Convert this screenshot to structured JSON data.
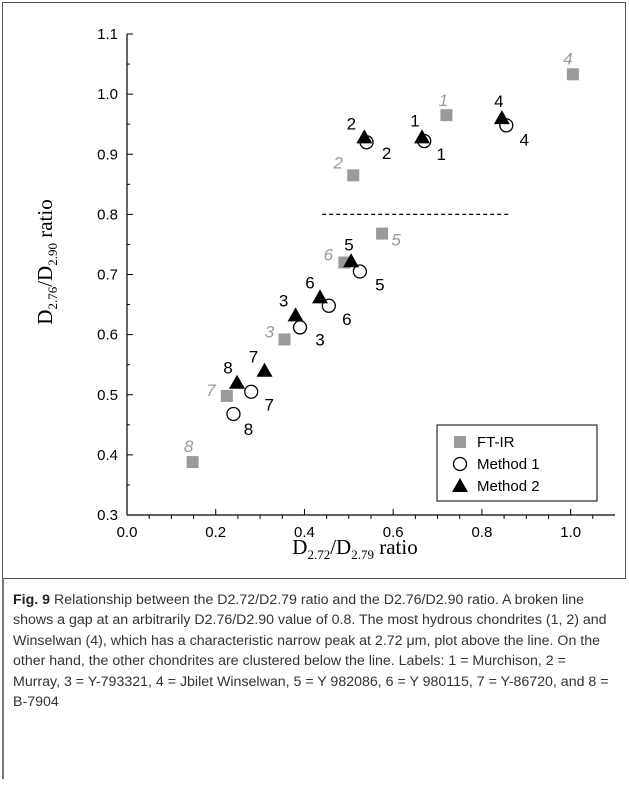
{
  "chart_data": {
    "type": "scatter",
    "xlabel": "D2.72/D2.79 ratio",
    "ylabel": "D2.76/D2.90 ratio",
    "xlim": [
      0.0,
      1.1
    ],
    "ylim": [
      0.3,
      1.1
    ],
    "x_ticks": [
      "0.0",
      "0.2",
      "0.4",
      "0.6",
      "0.8",
      "1.0"
    ],
    "y_ticks": [
      "0.3",
      "0.4",
      "0.5",
      "0.6",
      "0.7",
      "0.8",
      "0.9",
      "1.0",
      "1.1"
    ],
    "grid": false,
    "legend_position": "bottom-right",
    "reference_line": {
      "y": 0.8,
      "x_range": [
        0.44,
        0.86
      ],
      "style": "dashed"
    },
    "series": [
      {
        "name": "FT-IR",
        "marker": "square",
        "color": "#9a9a9a",
        "points": [
          {
            "label": "1",
            "x": 0.72,
            "y": 0.965
          },
          {
            "label": "2",
            "x": 0.51,
            "y": 0.865
          },
          {
            "label": "3",
            "x": 0.355,
            "y": 0.592
          },
          {
            "label": "4",
            "x": 1.005,
            "y": 1.033
          },
          {
            "label": "5",
            "x": 0.575,
            "y": 0.768
          },
          {
            "label": "6",
            "x": 0.49,
            "y": 0.72
          },
          {
            "label": "7",
            "x": 0.225,
            "y": 0.498
          },
          {
            "label": "8",
            "x": 0.148,
            "y": 0.388
          }
        ]
      },
      {
        "name": "Method 1",
        "marker": "circle",
        "color": "#000000",
        "points": [
          {
            "label": "1",
            "x": 0.67,
            "y": 0.922
          },
          {
            "label": "2",
            "x": 0.54,
            "y": 0.92
          },
          {
            "label": "3",
            "x": 0.39,
            "y": 0.612
          },
          {
            "label": "4",
            "x": 0.855,
            "y": 0.948
          },
          {
            "label": "5",
            "x": 0.525,
            "y": 0.705
          },
          {
            "label": "6",
            "x": 0.455,
            "y": 0.648
          },
          {
            "label": "7",
            "x": 0.28,
            "y": 0.505
          },
          {
            "label": "8",
            "x": 0.24,
            "y": 0.468
          }
        ]
      },
      {
        "name": "Method 2",
        "marker": "triangle",
        "color": "#000000",
        "points": [
          {
            "label": "1",
            "x": 0.665,
            "y": 0.928
          },
          {
            "label": "2",
            "x": 0.535,
            "y": 0.928
          },
          {
            "label": "3",
            "x": 0.38,
            "y": 0.632
          },
          {
            "label": "4",
            "x": 0.845,
            "y": 0.96
          },
          {
            "label": "5",
            "x": 0.505,
            "y": 0.722
          },
          {
            "label": "6",
            "x": 0.435,
            "y": 0.662
          },
          {
            "label": "7",
            "x": 0.31,
            "y": 0.54
          },
          {
            "label": "8",
            "x": 0.248,
            "y": 0.52
          }
        ]
      }
    ]
  },
  "caption": {
    "label": "Fig. 9",
    "text": "Relationship between the D2.72/D2.79 ratio and the D2.76/D2.90 ratio. A broken line shows a gap at an arbitrarily D2.76/D2.90 value of 0.8. The most hydrous chondrites (1, 2) and Winselwan (4), which has a characteristic narrow peak at 2.72 μm, plot above the line. On the other hand, the other chondrites are clustered below the line. Labels: 1 = Murchison, 2 = Murray, 3 = Y-793321, 4 = Jbilet Winselwan, 5 = Y 982086, 6 = Y 980115, 7 = Y-86720, and 8 = B-7904"
  },
  "colors": {
    "ftir": "#9a9a9a",
    "marker": "#000000",
    "caption_text": "#333333"
  }
}
